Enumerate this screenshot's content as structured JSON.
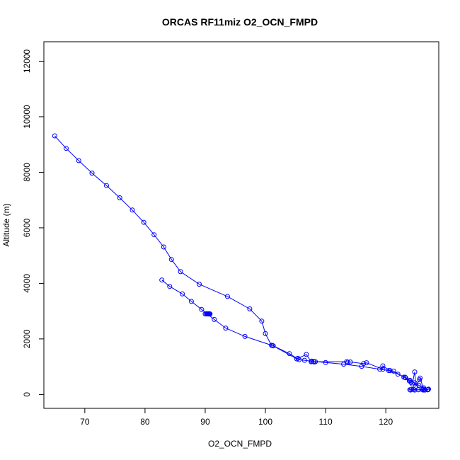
{
  "chart_data": {
    "type": "line",
    "title": "ORCAS RF11miz O2_OCN_FMPD",
    "xlabel": "O2_OCN_FMPD",
    "ylabel": "Altitude (m)",
    "xlim": [
      63.2,
      128.8
    ],
    "ylim": [
      -500,
      12700
    ],
    "xticks": [
      70,
      80,
      90,
      100,
      110,
      120
    ],
    "yticks": [
      0,
      2000,
      4000,
      6000,
      8000,
      10000,
      12000
    ],
    "grid": false,
    "legend": "none",
    "series_color": "#0000ff",
    "marker": "open-circle",
    "series": [
      {
        "name": "",
        "x": [
          65.0,
          66.9,
          69.0,
          71.2,
          73.6,
          75.8,
          77.9,
          79.8,
          81.5,
          83.1,
          84.4,
          85.9,
          89.0,
          93.7,
          97.4,
          99.4,
          100.0,
          101.0,
          101.2,
          105.2,
          105.4,
          106.8,
          107.6,
          107.7,
          108.1,
          108.3,
          113.5,
          113.7,
          114.1,
          116.3,
          116.8,
          119.5,
          119.5,
          120.7,
          121.3,
          123.0,
          123.3,
          123.9,
          124.2,
          124.4,
          124.8,
          125.0,
          125.6,
          125.7,
          126.3,
          126.9,
          127.1,
          127.0,
          126.5,
          126.0,
          125.4,
          124.8,
          124.3,
          124.0,
          124.1,
          124.6,
          125.4,
          126.2,
          127.0
        ],
        "y": [
          9310,
          8860,
          8420,
          7970,
          7520,
          7080,
          6640,
          6200,
          5750,
          5310,
          4860,
          4420,
          3970,
          3530,
          3080,
          2640,
          2190,
          1770,
          1760,
          1280,
          1300,
          1440,
          1180,
          1200,
          1170,
          1180,
          1180,
          1160,
          1170,
          1110,
          1140,
          910,
          1030,
          860,
          840,
          620,
          600,
          490,
          430,
          380,
          810,
          300,
          530,
          590,
          190,
          170,
          190,
          170,
          160,
          180,
          170,
          160,
          180,
          170,
          160,
          180,
          170,
          160,
          170
        ]
      },
      {
        "name": "",
        "x": [
          127.0,
          126.3,
          125.5,
          124.8,
          124.0,
          123.2,
          122.0,
          120.5,
          119.0,
          116.0,
          113.0,
          110.0,
          108.0,
          106.5,
          105.6,
          104.0,
          101.3,
          96.6,
          93.4,
          91.5,
          89.4,
          87.7,
          86.2,
          84.1,
          82.8
        ],
        "y": [
          170,
          240,
          330,
          420,
          510,
          620,
          730,
          860,
          910,
          1010,
          1090,
          1150,
          1190,
          1230,
          1250,
          1470,
          1750,
          2090,
          2390,
          2700,
          3060,
          3350,
          3620,
          3890,
          4120
        ]
      },
      {
        "name": "",
        "x": [
          90.0,
          90.2,
          90.3,
          90.4,
          90.5,
          90.6,
          90.7,
          90.8
        ],
        "y": [
          2900,
          2905,
          2898,
          2902,
          2900,
          2896,
          2904,
          2900
        ]
      }
    ]
  }
}
